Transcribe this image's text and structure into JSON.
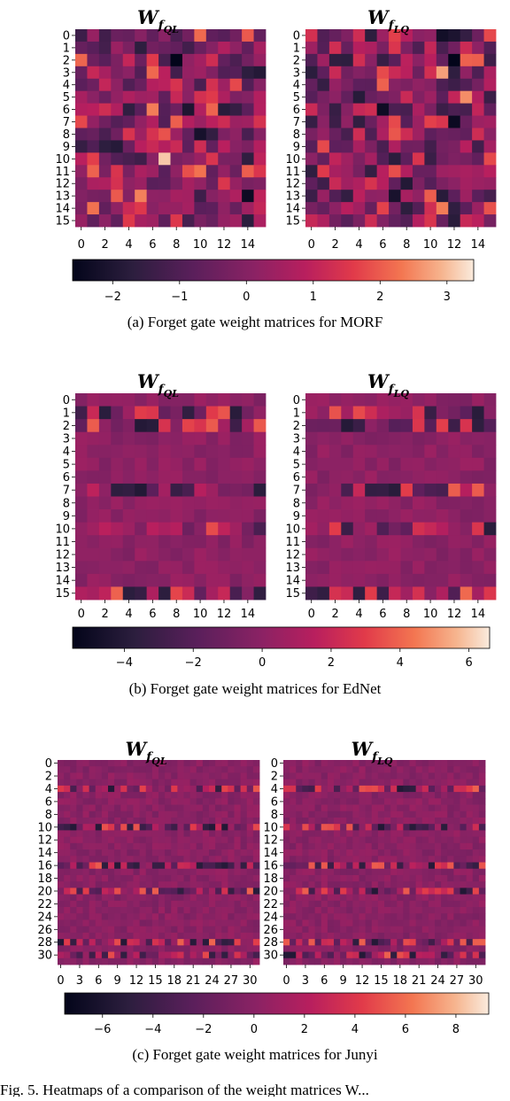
{
  "figure": {
    "captions": [
      "(a) Forget gate weight matrices for MORF",
      "(b) Forget gate weight matrices for EdNet",
      "(c) Forget gate weight matrices for Junyi"
    ],
    "footer_text": "Fig. 5.  Heatmaps of a comparison of the weight matrices W..."
  },
  "chart_data": [
    {
      "type": "heatmap",
      "dataset": "MORF",
      "panels": [
        {
          "title_main": "W",
          "title_sub": "f",
          "title_subsub": "QL",
          "title": "W_{f_QL}",
          "rows": 16,
          "cols": 16
        },
        {
          "title_main": "W",
          "title_sub": "f",
          "title_subsub": "LQ",
          "title": "W_{f_LQ}",
          "rows": 16,
          "cols": 16
        }
      ],
      "y_ticks": [
        "0",
        "1",
        "2",
        "3",
        "4",
        "5",
        "6",
        "7",
        "8",
        "9",
        "10",
        "11",
        "12",
        "13",
        "14",
        "15"
      ],
      "x_ticks": [
        "0",
        "2",
        "4",
        "6",
        "8",
        "10",
        "12",
        "14"
      ],
      "colorbar": {
        "min": -2.6,
        "max": 3.4,
        "ticks": [
          "−2",
          "−1",
          "0",
          "1",
          "2",
          "3"
        ],
        "tick_values": [
          -2,
          -1,
          0,
          1,
          2,
          3
        ]
      },
      "seed": 11,
      "grid": false,
      "values_note": ""
    },
    {
      "type": "heatmap",
      "dataset": "EdNet",
      "panels": [
        {
          "title_main": "W",
          "title_sub": "f",
          "title_subsub": "QL",
          "title": "W_{f_QL}",
          "rows": 16,
          "cols": 16
        },
        {
          "title_main": "W",
          "title_sub": "f",
          "title_subsub": "LQ",
          "title": "W_{f_LQ}",
          "rows": 16,
          "cols": 16
        }
      ],
      "y_ticks": [
        "0",
        "1",
        "2",
        "3",
        "4",
        "5",
        "6",
        "7",
        "8",
        "9",
        "10",
        "11",
        "12",
        "13",
        "14",
        "15"
      ],
      "x_ticks": [
        "0",
        "2",
        "4",
        "6",
        "8",
        "10",
        "12",
        "14"
      ],
      "colorbar": {
        "min": -5.5,
        "max": 6.6,
        "ticks": [
          "−4",
          "−2",
          "0",
          "2",
          "4",
          "6"
        ],
        "tick_values": [
          -4,
          -2,
          0,
          2,
          4,
          6
        ]
      },
      "seed": 29,
      "grid": false,
      "active_rows": [
        1,
        2,
        7,
        10,
        15
      ]
    },
    {
      "type": "heatmap",
      "dataset": "Junyi",
      "panels": [
        {
          "title_main": "W",
          "title_sub": "f",
          "title_subsub": "QL",
          "title": "W_{f_QL}",
          "rows": 32,
          "cols": 32
        },
        {
          "title_main": "W",
          "title_sub": "f",
          "title_subsub": "LQ",
          "title": "W_{f_LQ}",
          "rows": 32,
          "cols": 32
        }
      ],
      "y_ticks": [
        "0",
        "2",
        "4",
        "6",
        "8",
        "10",
        "12",
        "14",
        "16",
        "18",
        "20",
        "22",
        "24",
        "26",
        "28",
        "30"
      ],
      "x_ticks": [
        "0",
        "3",
        "6",
        "9",
        "12",
        "15",
        "18",
        "21",
        "24",
        "27",
        "30"
      ],
      "colorbar": {
        "min": -7.5,
        "max": 9.3,
        "ticks": [
          "−6",
          "−4",
          "−2",
          "0",
          "2",
          "4",
          "6",
          "8"
        ],
        "tick_values": [
          -6,
          -4,
          -2,
          0,
          2,
          4,
          6,
          8
        ]
      },
      "seed": 53,
      "grid": false,
      "active_rows": [
        4,
        10,
        16,
        20,
        28,
        30
      ]
    }
  ]
}
